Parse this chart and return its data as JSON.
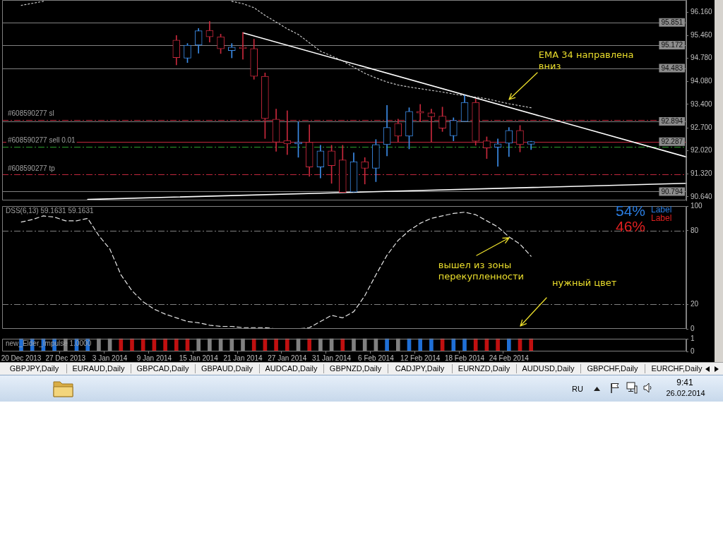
{
  "chart_data": [
    {
      "type": "candlestick",
      "categories": [
        "20 Dec 2013",
        null,
        null,
        null,
        "27 Dec 2013",
        null,
        null,
        null,
        "3 Jan 2014",
        null,
        null,
        null,
        "9 Jan 2014",
        null,
        null,
        null,
        "15 Jan 2014",
        null,
        null,
        null,
        "21 Jan 2014",
        null,
        null,
        null,
        "27 Jan 2014",
        null,
        null,
        null,
        "31 Jan 2014",
        null,
        null,
        null,
        "6 Feb 2014",
        null,
        null,
        null,
        "12 Feb 2014",
        null,
        null,
        null,
        "18 Feb 2014",
        null,
        null,
        null,
        "24 Feb 2014",
        null,
        null,
        null,
        null,
        null,
        null,
        null,
        null,
        null,
        null,
        null,
        null,
        null,
        null,
        null,
        null
      ],
      "ohlc": [
        null,
        null,
        null,
        null,
        null,
        null,
        null,
        null,
        null,
        null,
        null,
        null,
        null,
        null,
        [
          95.32,
          95.46,
          94.58,
          94.8
        ],
        [
          94.78,
          95.22,
          94.65,
          95.17
        ],
        [
          95.17,
          95.67,
          94.93,
          95.6
        ],
        [
          95.61,
          95.88,
          95.26,
          95.42
        ],
        [
          95.42,
          95.5,
          94.92,
          95.06
        ],
        [
          95.01,
          95.22,
          94.79,
          95.11
        ],
        [
          95.11,
          95.55,
          94.75,
          95.07
        ],
        [
          95.07,
          95.35,
          94.15,
          94.24
        ],
        [
          94.24,
          94.34,
          92.38,
          92.98
        ],
        [
          92.96,
          93.26,
          92.0,
          92.27
        ],
        [
          92.32,
          93.21,
          91.9,
          92.22
        ],
        [
          92.22,
          92.88,
          91.82,
          92.27
        ],
        [
          92.27,
          92.79,
          91.25,
          91.53
        ],
        [
          91.53,
          92.18,
          91.2,
          92.01
        ],
        [
          92.01,
          92.18,
          91.04,
          91.57
        ],
        [
          91.74,
          92.18,
          90.77,
          90.77
        ],
        [
          90.78,
          91.95,
          90.78,
          91.69
        ],
        [
          91.69,
          91.81,
          91.02,
          91.49
        ],
        [
          91.49,
          92.35,
          91.09,
          92.2
        ],
        [
          92.2,
          93.37,
          91.86,
          92.71
        ],
        [
          92.83,
          92.96,
          92.27,
          92.45
        ],
        [
          92.45,
          93.3,
          92.07,
          93.19
        ],
        [
          93.19,
          93.4,
          92.88,
          93.14
        ],
        [
          93.15,
          93.26,
          92.27,
          93.03
        ],
        [
          93.05,
          93.32,
          92.59,
          92.69
        ],
        [
          92.46,
          93.0,
          92.31,
          92.92
        ],
        [
          92.89,
          93.67,
          92.89,
          93.46
        ],
        [
          93.46,
          93.56,
          92.18,
          92.3
        ],
        [
          92.31,
          92.43,
          91.78,
          92.1
        ],
        [
          92.12,
          92.37,
          91.55,
          92.22
        ],
        [
          92.24,
          92.71,
          91.84,
          92.62
        ],
        [
          92.62,
          92.77,
          91.98,
          92.2
        ],
        [
          92.21,
          92.3,
          92.05,
          92.29
        ],
        null,
        null,
        null,
        null,
        null,
        null,
        null,
        null,
        null,
        null,
        null,
        null,
        null,
        null
      ],
      "colors": [
        null,
        null,
        null,
        null,
        null,
        null,
        null,
        null,
        null,
        null,
        null,
        null,
        null,
        null,
        "#c8283c",
        "#3c8ce8",
        "#3c8ce8",
        "#c8283c",
        "#c8283c",
        "#3c8ce8",
        "#c8283c",
        "#c8283c",
        "#c8283c",
        "#c8283c",
        "#c8283c",
        "#3c8ce8",
        "#c8283c",
        "#3c8ce8",
        "#c8283c",
        "#c8283c",
        "#3c8ce8",
        "#c8283c",
        "#3c8ce8",
        "#3c8ce8",
        "#c8283c",
        "#3c8ce8",
        "#c8283c",
        "#c8283c",
        "#c8283c",
        "#3c8ce8",
        "#3c8ce8",
        "#c8283c",
        "#c8283c",
        "#3c8ce8",
        "#3c8ce8",
        "#c8283c",
        "#3c8ce8",
        null,
        null,
        null,
        null,
        null,
        null,
        null,
        null,
        null,
        null,
        null,
        null,
        null,
        null
      ],
      "series": [
        {
          "type": "line",
          "color": "#c8c8c8",
          "line_style": "dotted",
          "values": [
            96.36,
            96.42,
            96.48,
            null,
            null,
            null,
            null,
            null,
            null,
            null,
            null,
            null,
            null,
            null,
            null,
            null,
            null,
            null,
            null,
            96.48,
            96.41,
            96.29,
            96.06,
            95.86,
            95.66,
            95.49,
            95.24,
            94.99,
            94.85,
            94.7,
            94.51,
            94.33,
            94.19,
            94.07,
            93.98,
            93.92,
            93.87,
            93.82,
            93.77,
            93.71,
            93.66,
            93.62,
            93.57,
            93.49,
            93.42,
            93.36,
            93.3,
            null,
            null,
            null,
            null,
            null,
            null,
            null,
            null,
            null,
            null,
            null,
            null,
            null,
            null
          ]
        },
        {
          "type": "line",
          "color": "#ffffff",
          "values": [
            null,
            null,
            null,
            null,
            null,
            null,
            null,
            null,
            null,
            null,
            null,
            null,
            null,
            null,
            null,
            null,
            null,
            null,
            null,
            null,
            95.54,
            null,
            null,
            null,
            null,
            null,
            null,
            null,
            null,
            null,
            null,
            null,
            null,
            null,
            null,
            null,
            null,
            null,
            null,
            null,
            null,
            null,
            null,
            null,
            null,
            null,
            null,
            null,
            null,
            null,
            null,
            null,
            null,
            null,
            null,
            null,
            null,
            null,
            null,
            null,
            91.83
          ]
        },
        {
          "type": "line",
          "color": "#ffffff",
          "values": [
            null,
            null,
            null,
            null,
            null,
            null,
            90.56,
            null,
            null,
            null,
            null,
            null,
            null,
            null,
            null,
            null,
            null,
            null,
            null,
            null,
            null,
            null,
            null,
            null,
            null,
            null,
            null,
            null,
            null,
            null,
            null,
            null,
            null,
            null,
            null,
            null,
            null,
            null,
            null,
            null,
            null,
            null,
            null,
            null,
            null,
            null,
            null,
            null,
            null,
            null,
            null,
            null,
            null,
            null,
            null,
            null,
            null,
            null,
            null,
            null,
            91.04
          ]
        }
      ],
      "ylim": [
        90.53,
        96.52
      ],
      "yticks": [
        {
          "value": 96.16,
          "label": "96.160"
        },
        {
          "value": 95.46,
          "label": "95.460"
        },
        {
          "value": 94.78,
          "label": "94.780"
        },
        {
          "value": 94.08,
          "label": "94.080"
        },
        {
          "value": 93.4,
          "label": "93.400"
        },
        {
          "value": 92.7,
          "label": "92.700"
        },
        {
          "value": 92.02,
          "label": "92.020"
        },
        {
          "value": 91.32,
          "label": "91.320"
        },
        {
          "value": 90.64,
          "label": "90.640"
        }
      ],
      "ref_lines": [
        {
          "axis": "y",
          "value": 95.851,
          "label": "95.851",
          "color": "#808080"
        },
        {
          "axis": "y",
          "value": 95.172,
          "label": "95.172",
          "color": "#808080"
        },
        {
          "axis": "y",
          "value": 94.483,
          "label": "94.483",
          "color": "#808080"
        },
        {
          "axis": "y",
          "value": 92.894,
          "label": "92.894",
          "color": "#808080"
        },
        {
          "axis": "y",
          "value": 90.794,
          "label": "90.794",
          "color": "#808080"
        },
        {
          "axis": "y",
          "value": 92.287,
          "label": "92.287",
          "color": "#c0283c"
        },
        {
          "axis": "y",
          "value": 92.94,
          "label": "#608590277 sl",
          "color": "#c0283c",
          "line_style": "dashed"
        },
        {
          "axis": "y",
          "value": 92.14,
          "label": "#608590277 sell 0.01",
          "color": "#2e9e2e",
          "line_style": "dashed"
        },
        {
          "axis": "y",
          "value": 91.3,
          "label": "#608590277 tp",
          "color": "#c0283c",
          "line_style": "dashed"
        }
      ],
      "tick_labels": "y",
      "annotations": [
        {
          "text": "EMA 34 направлена вниз",
          "x": "24 Feb 2014",
          "y": 93.5
        }
      ]
    },
    {
      "type": "line",
      "title": "DSS(6,13) 59.1631 59.1631",
      "categories": [
        "20 Dec 2013",
        null,
        null,
        null,
        "27 Dec 2013",
        null,
        null,
        null,
        "3 Jan 2014",
        null,
        null,
        null,
        "9 Jan 2014",
        null,
        null,
        null,
        "15 Jan 2014",
        null,
        null,
        null,
        "21 Jan 2014",
        null,
        null,
        null,
        "27 Jan 2014",
        null,
        null,
        null,
        "31 Jan 2014",
        null,
        null,
        null,
        "6 Feb 2014",
        null,
        null,
        null,
        "12 Feb 2014",
        null,
        null,
        null,
        "18 Feb 2014",
        null,
        null,
        null,
        "24 Feb 2014",
        null,
        null,
        null,
        null,
        null,
        null,
        null,
        null,
        null,
        null,
        null,
        null,
        null,
        null,
        null,
        null
      ],
      "series": [
        {
          "color": "#e6e6e6",
          "line_style": "dashed",
          "values": [
            87,
            89,
            92,
            91,
            88,
            88,
            90,
            76,
            65,
            44,
            31,
            22,
            16,
            12,
            9,
            6,
            5,
            3,
            2,
            2,
            1,
            1,
            1,
            0,
            0,
            0,
            1,
            6,
            11,
            9,
            14,
            27,
            44,
            60,
            72,
            80,
            86,
            90,
            92,
            94,
            95,
            93,
            88,
            83,
            75,
            69,
            59.1631,
            null,
            null,
            null,
            null,
            null,
            null,
            null,
            null,
            null,
            null,
            null,
            null,
            null,
            null
          ]
        }
      ],
      "ylim": [
        0,
        100
      ],
      "yticks": [
        0,
        20,
        80,
        100
      ],
      "ref_lines": [
        {
          "axis": "y",
          "value": 20,
          "color": "#808080",
          "line_style": "dashed"
        },
        {
          "axis": "y",
          "value": 80,
          "color": "#808080",
          "line_style": "dashed"
        }
      ],
      "tick_labels": "y",
      "annotations": [
        {
          "text": "вышел из зоны перекупленности",
          "x": "24 Feb 2014",
          "y": 73
        },
        "нужный цвет",
        "54%",
        "46%",
        "Label",
        "Label"
      ]
    },
    {
      "type": "bar",
      "title": "new_Elder_Impulse 1.0000",
      "categories": [
        "20 Dec 2013",
        null,
        null,
        null,
        "27 Dec 2013",
        null,
        null,
        null,
        "3 Jan 2014",
        null,
        null,
        null,
        "9 Jan 2014",
        null,
        null,
        null,
        "15 Jan 2014",
        null,
        null,
        null,
        "21 Jan 2014",
        null,
        null,
        null,
        "27 Jan 2014",
        null,
        null,
        null,
        "31 Jan 2014",
        null,
        null,
        null,
        "6 Feb 2014",
        null,
        null,
        null,
        "12 Feb 2014",
        null,
        null,
        null,
        "18 Feb 2014",
        null,
        null,
        null,
        "24 Feb 2014",
        null,
        null,
        null,
        null,
        null,
        null,
        null,
        null,
        null,
        null,
        null,
        null,
        null,
        null,
        null,
        null
      ],
      "values": [
        1,
        1,
        1,
        1,
        1,
        1,
        1,
        1,
        1,
        1,
        1,
        1,
        1,
        1,
        1,
        1,
        1,
        1,
        1,
        1,
        1,
        1,
        1,
        1,
        1,
        1,
        1,
        1,
        1,
        1,
        1,
        1,
        1,
        1,
        1,
        1,
        1,
        1,
        1,
        1,
        1,
        1,
        1,
        1,
        1,
        1,
        1,
        null,
        null,
        null,
        null,
        null,
        null,
        null,
        null,
        null,
        null,
        null,
        null,
        null,
        null
      ],
      "colors": [
        "#1f6fd6",
        "#1f6fd6",
        "#1f6fd6",
        "#1f6fd6",
        "#808080",
        "#1f6fd6",
        "#1f6fd6",
        "#808080",
        "#808080",
        "#c01010",
        "#c01010",
        "#c01010",
        "#c01010",
        "#c01010",
        "#c01010",
        "#c01010",
        "#808080",
        "#808080",
        "#808080",
        "#808080",
        "#808080",
        "#c01010",
        "#c01010",
        "#c01010",
        "#c01010",
        "#808080",
        "#c01010",
        "#808080",
        "#808080",
        "#c01010",
        "#808080",
        "#808080",
        "#808080",
        "#1f6fd6",
        "#808080",
        "#1f6fd6",
        "#1f6fd6",
        "#1f6fd6",
        "#c01010",
        "#1f6fd6",
        "#1f6fd6",
        "#c01010",
        "#c01010",
        "#c01010",
        "#1f6fd6",
        "#c01010",
        "#c01010",
        null,
        null,
        null,
        null,
        null,
        null,
        null,
        null,
        null,
        null,
        null,
        null,
        null,
        null
      ],
      "ylim": [
        0,
        1
      ],
      "yticks": [
        0,
        1
      ]
    },
    {
      "type": "other",
      "annotations": [
        "GBPJPY,Daily",
        "EURAUD,Daily",
        "GBPCAD,Daily",
        "GBPAUD,Daily",
        "AUDCAD,Daily",
        "GBPNZD,Daily",
        "CADJPY,Daily",
        "EURNZD,Daily",
        "AUDUSD,Daily",
        "GBPCHF,Daily",
        "EURCHF,Daily",
        "RU",
        "9:41",
        "26.02.2014"
      ]
    }
  ]
}
